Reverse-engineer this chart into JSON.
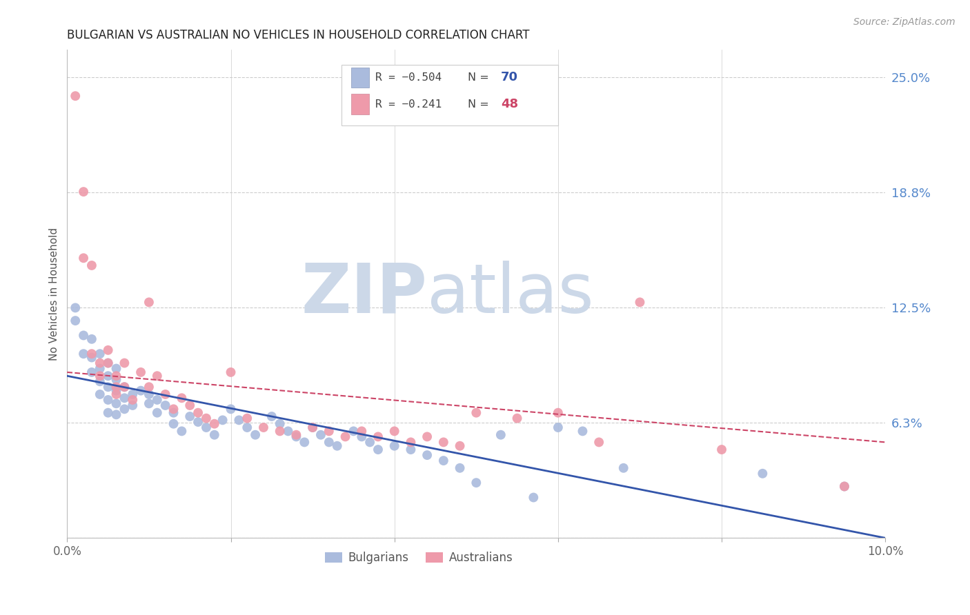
{
  "title": "BULGARIAN VS AUSTRALIAN NO VEHICLES IN HOUSEHOLD CORRELATION CHART",
  "source": "Source: ZipAtlas.com",
  "ylabel": "No Vehicles in Household",
  "xlim": [
    0.0,
    0.1
  ],
  "ylim": [
    0.0,
    0.265
  ],
  "ytick_vals": [
    0.0,
    0.0625,
    0.125,
    0.1875,
    0.25
  ],
  "ytick_labels": [
    "",
    "6.3%",
    "12.5%",
    "18.8%",
    "25.0%"
  ],
  "xtick_vals": [
    0.0,
    0.02,
    0.04,
    0.06,
    0.08,
    0.1
  ],
  "xtick_labels": [
    "0.0%",
    "",
    "",
    "",
    "",
    "10.0%"
  ],
  "background_color": "#ffffff",
  "grid_color": "#cccccc",
  "right_tick_color": "#5588cc",
  "title_color": "#222222",
  "watermark_zip": "ZIP",
  "watermark_atlas": "atlas",
  "watermark_color": "#ccd8e8",
  "legend_r1": "R = −0.504",
  "legend_n1": "70",
  "legend_r2": "R = −0.241",
  "legend_n2": "48",
  "blue_color": "#aabbdd",
  "pink_color": "#ee9aaa",
  "blue_line_color": "#3355aa",
  "pink_line_color": "#cc4466",
  "marker_size": 100,
  "blue_line_y_start": 0.088,
  "blue_line_y_end": 0.0,
  "pink_line_y_start": 0.09,
  "pink_line_y_end": 0.052,
  "blue_points_x": [
    0.001,
    0.001,
    0.002,
    0.002,
    0.003,
    0.003,
    0.003,
    0.004,
    0.004,
    0.004,
    0.004,
    0.005,
    0.005,
    0.005,
    0.005,
    0.005,
    0.006,
    0.006,
    0.006,
    0.006,
    0.006,
    0.007,
    0.007,
    0.007,
    0.008,
    0.008,
    0.009,
    0.01,
    0.01,
    0.011,
    0.011,
    0.012,
    0.013,
    0.013,
    0.014,
    0.015,
    0.016,
    0.017,
    0.018,
    0.019,
    0.02,
    0.021,
    0.022,
    0.023,
    0.025,
    0.026,
    0.027,
    0.028,
    0.029,
    0.03,
    0.031,
    0.032,
    0.033,
    0.035,
    0.036,
    0.037,
    0.038,
    0.04,
    0.042,
    0.044,
    0.046,
    0.048,
    0.05,
    0.053,
    0.057,
    0.06,
    0.063,
    0.068,
    0.085,
    0.095
  ],
  "blue_points_y": [
    0.125,
    0.118,
    0.11,
    0.1,
    0.108,
    0.098,
    0.09,
    0.1,
    0.092,
    0.085,
    0.078,
    0.095,
    0.088,
    0.082,
    0.075,
    0.068,
    0.092,
    0.086,
    0.08,
    0.073,
    0.067,
    0.082,
    0.076,
    0.07,
    0.078,
    0.072,
    0.08,
    0.078,
    0.073,
    0.075,
    0.068,
    0.072,
    0.068,
    0.062,
    0.058,
    0.066,
    0.063,
    0.06,
    0.056,
    0.064,
    0.07,
    0.064,
    0.06,
    0.056,
    0.066,
    0.062,
    0.058,
    0.055,
    0.052,
    0.06,
    0.056,
    0.052,
    0.05,
    0.058,
    0.055,
    0.052,
    0.048,
    0.05,
    0.048,
    0.045,
    0.042,
    0.038,
    0.03,
    0.056,
    0.022,
    0.06,
    0.058,
    0.038,
    0.035,
    0.028
  ],
  "pink_points_x": [
    0.001,
    0.002,
    0.002,
    0.003,
    0.003,
    0.004,
    0.004,
    0.005,
    0.005,
    0.006,
    0.006,
    0.006,
    0.007,
    0.007,
    0.008,
    0.009,
    0.01,
    0.01,
    0.011,
    0.012,
    0.013,
    0.014,
    0.015,
    0.016,
    0.017,
    0.018,
    0.02,
    0.022,
    0.024,
    0.026,
    0.028,
    0.03,
    0.032,
    0.034,
    0.036,
    0.038,
    0.04,
    0.042,
    0.044,
    0.046,
    0.048,
    0.05,
    0.055,
    0.06,
    0.065,
    0.07,
    0.08,
    0.095
  ],
  "pink_points_y": [
    0.24,
    0.188,
    0.152,
    0.148,
    0.1,
    0.095,
    0.088,
    0.102,
    0.095,
    0.088,
    0.082,
    0.078,
    0.095,
    0.082,
    0.075,
    0.09,
    0.128,
    0.082,
    0.088,
    0.078,
    0.07,
    0.076,
    0.072,
    0.068,
    0.065,
    0.062,
    0.09,
    0.065,
    0.06,
    0.058,
    0.056,
    0.06,
    0.058,
    0.055,
    0.058,
    0.055,
    0.058,
    0.052,
    0.055,
    0.052,
    0.05,
    0.068,
    0.065,
    0.068,
    0.052,
    0.128,
    0.048,
    0.028
  ]
}
